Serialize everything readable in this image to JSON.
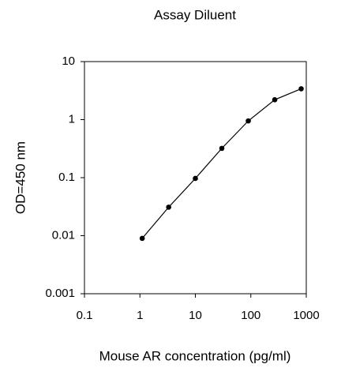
{
  "chart_data": {
    "type": "line",
    "title": "Assay Diluent",
    "x_label": "Mouse AR concentration (pg/ml)",
    "y_label": "OD=450 nm",
    "x": [
      1.1,
      3.3,
      10,
      30,
      90,
      270,
      810
    ],
    "series": [
      {
        "color": "#000000",
        "values": [
          0.009,
          0.031,
          0.097,
          0.32,
          0.95,
          2.2,
          3.4
        ]
      }
    ],
    "xlim": [
      0.1,
      1000
    ],
    "xticks": [
      0.1,
      1,
      10,
      100,
      1000
    ],
    "ylim": [
      0.001,
      10
    ],
    "yticks": [
      0.001,
      0.01,
      0.1,
      1,
      10
    ],
    "x_log": true,
    "y_log": true,
    "frame": true
  }
}
